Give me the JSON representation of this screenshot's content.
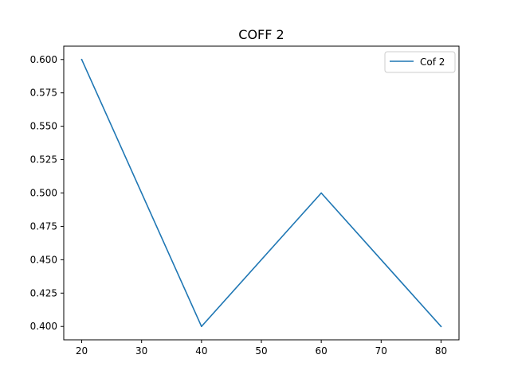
{
  "chart_data": {
    "type": "line",
    "title": "COFF 2",
    "xlabel": "",
    "ylabel": "",
    "x": [
      20,
      40,
      60,
      80
    ],
    "series": [
      {
        "name": "Cof 2",
        "values": [
          0.6,
          0.4,
          0.5,
          0.4
        ],
        "color": "#1f77b4"
      }
    ],
    "xlim": [
      17,
      83
    ],
    "ylim": [
      0.39,
      0.61
    ],
    "xticks": [
      20,
      30,
      40,
      50,
      60,
      70,
      80
    ],
    "xtick_labels": [
      "20",
      "30",
      "40",
      "50",
      "60",
      "70",
      "80"
    ],
    "yticks": [
      0.4,
      0.425,
      0.45,
      0.475,
      0.5,
      0.525,
      0.55,
      0.575,
      0.6
    ],
    "ytick_labels": [
      "0.400",
      "0.425",
      "0.450",
      "0.475",
      "0.500",
      "0.525",
      "0.550",
      "0.575",
      "0.600"
    ],
    "grid": false,
    "legend_position": "top-right"
  }
}
